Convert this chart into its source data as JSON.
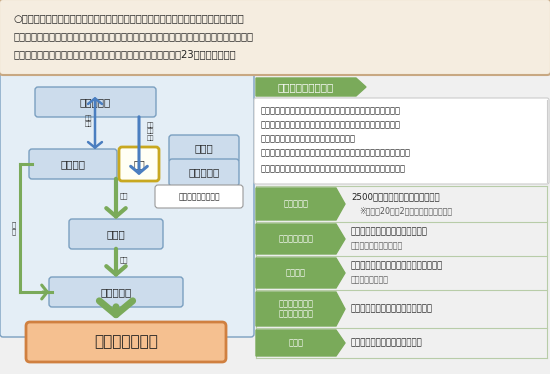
{
  "bg_color": "#f0f0f0",
  "header_bg": "#f5ede0",
  "header_border": "#c8a882",
  "header_text_line1": "○地域の雇用失業情勢が厳しい中で、地域の実情や創意工夫に基づいて地域求職者等",
  "header_text_line2": "の雇用機会を創出する取組みを支援するため、都道府県に対して「ふるさと雇用再生特別",
  "header_text_line3": "交付金」を交付し、これに基づく基金を造成する（基金は平成23年度末まで）。",
  "left_panel_bg": "#e4eef6",
  "left_panel_border": "#7a9fc0",
  "box_bg": "#ccdcec",
  "box_border": "#7a9fc0",
  "arrow_green": "#7aaa5a",
  "arrow_blue": "#3a6ea5",
  "arrow_blue2": "#4a7ec0",
  "outline_title": "事業のアウトライン",
  "outline_title_bg": "#7aaa5a",
  "outline_text1_lines": [
    "・地方公共団体は、地域内でニーズがあり今後の地域の発展に",
    "資すると見込まれる事業のうち、その後の事業継続が見込まれ",
    "る事業を計画し、民間企業等に事業委託。",
    "（地域の当事者からなる地域基金事業協議会において事業選定等）"
  ],
  "outline_text2": "・民間企業等が求職者を新たに雇い入れることにより雇用創出。",
  "table_label_bg": "#7aaa5a",
  "rows": [
    {
      "label": "事業の規模",
      "label2": "",
      "text1": "2500億円　（労働保険特別会計）",
      "text2": "※　平成20年度2次補正予算による措置"
    },
    {
      "label": "事業実施の要件",
      "label2": "",
      "text1": "事業費に占める新規雇用失業者の",
      "text2": "人件費割合は１／２以上"
    },
    {
      "label": "雇用期間",
      "label2": "",
      "text1": "労働者と原則１年の雇用契約を締結し、",
      "text2": "必要に応じて更新"
    },
    {
      "label": "積極的な活用が",
      "label2": "求められる分野",
      "text1": "介護、農林水産業、環境、観光分野",
      "text2": ""
    },
    {
      "label": "その他",
      "label2": "",
      "text1": "正規雇用化のための一時金支給",
      "text2": ""
    }
  ],
  "bottom_box_bg": "#f5c090",
  "bottom_box_border": "#d08040",
  "bottom_box_text": "雇用機会の創出",
  "node_ministry": "厚生労働省",
  "node_prefecture": "都道府県",
  "node_fund": "基金",
  "node_labor_bureau": "労働局",
  "node_labor_union": "労使団体等",
  "node_council": "地域基金事業協議会",
  "node_city": "市町村",
  "node_company": "民間企業等",
  "label_jigyou": "事業\n計画",
  "label_koufukin": "交付\n金の\n交付",
  "label_hojokin": "補助",
  "label_itaku1": "委託",
  "label_itaku2": "委託",
  "label_itaku3": "委\n託"
}
